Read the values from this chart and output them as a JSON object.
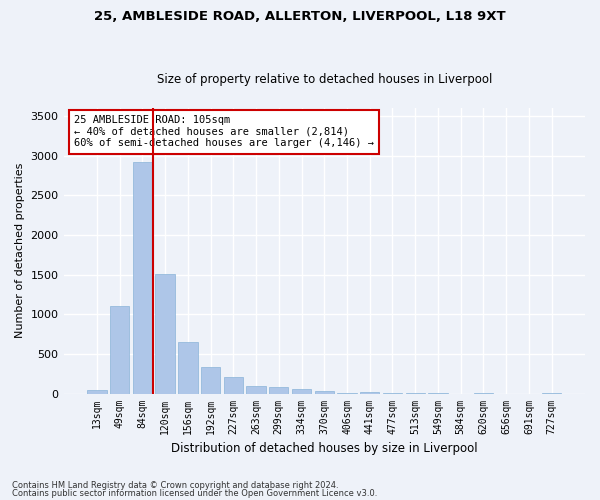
{
  "title_line1": "25, AMBLESIDE ROAD, ALLERTON, LIVERPOOL, L18 9XT",
  "title_line2": "Size of property relative to detached houses in Liverpool",
  "xlabel": "Distribution of detached houses by size in Liverpool",
  "ylabel": "Number of detached properties",
  "bar_labels": [
    "13sqm",
    "49sqm",
    "84sqm",
    "120sqm",
    "156sqm",
    "192sqm",
    "227sqm",
    "263sqm",
    "299sqm",
    "334sqm",
    "370sqm",
    "406sqm",
    "441sqm",
    "477sqm",
    "513sqm",
    "549sqm",
    "584sqm",
    "620sqm",
    "656sqm",
    "691sqm",
    "727sqm"
  ],
  "bar_values": [
    50,
    1100,
    2920,
    1510,
    650,
    340,
    215,
    100,
    85,
    60,
    30,
    10,
    25,
    5,
    5,
    5,
    0,
    5,
    0,
    0,
    5
  ],
  "bar_color": "#aec6e8",
  "bar_edge_color": "#8ab4d8",
  "vline_color": "#cc0000",
  "vline_x": 2.45,
  "annotation_text": "25 AMBLESIDE ROAD: 105sqm\n← 40% of detached houses are smaller (2,814)\n60% of semi-detached houses are larger (4,146) →",
  "annotation_box_color": "#ffffff",
  "annotation_box_edge": "#cc0000",
  "ylim": [
    0,
    3600
  ],
  "yticks": [
    0,
    500,
    1000,
    1500,
    2000,
    2500,
    3000,
    3500
  ],
  "footnote1": "Contains HM Land Registry data © Crown copyright and database right 2024.",
  "footnote2": "Contains public sector information licensed under the Open Government Licence v3.0.",
  "bg_color": "#eef2f9",
  "plot_bg_color": "#eef2f9",
  "grid_color": "#ffffff",
  "title1_fontsize": 9.5,
  "title2_fontsize": 8.5,
  "ylabel_fontsize": 8,
  "xlabel_fontsize": 8.5,
  "tick_fontsize": 7,
  "annotation_fontsize": 7.5,
  "footnote_fontsize": 6
}
